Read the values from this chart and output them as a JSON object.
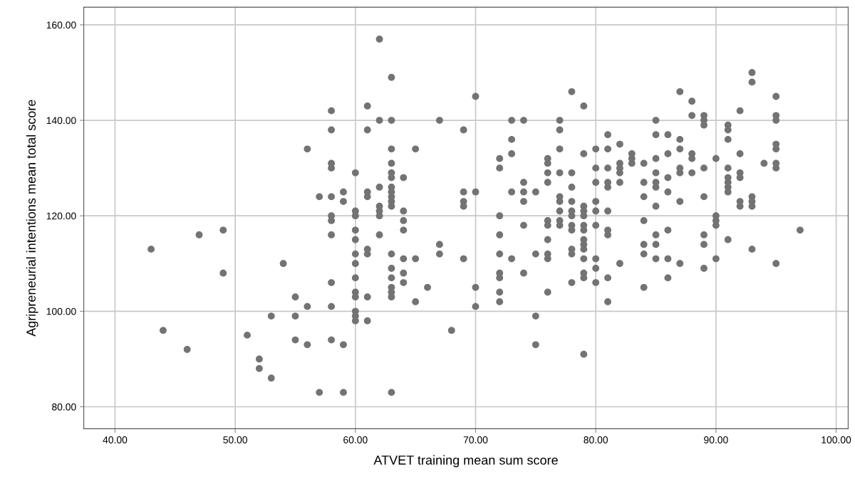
{
  "chart_data": {
    "type": "scatter",
    "xlabel": "ATVET training mean sum score",
    "ylabel": "Agripreneurial intentions mean total score",
    "xlim": [
      37.4,
      101
    ],
    "ylim": [
      75.4,
      163.7
    ],
    "xticks": [
      {
        "value": 40,
        "label": "40.00"
      },
      {
        "value": 50,
        "label": "50.00"
      },
      {
        "value": 60,
        "label": "60.00"
      },
      {
        "value": 70,
        "label": "70.00"
      },
      {
        "value": 80,
        "label": "80.00"
      },
      {
        "value": 90,
        "label": "90.00"
      },
      {
        "value": 100,
        "label": "100.00"
      }
    ],
    "yticks": [
      {
        "value": 80,
        "label": "80.00"
      },
      {
        "value": 100,
        "label": "100.00"
      },
      {
        "value": 120,
        "label": "120.00"
      },
      {
        "value": 140,
        "label": "140.00"
      },
      {
        "value": 160,
        "label": "160.00"
      }
    ],
    "grid": true,
    "marker": "circle",
    "series": [
      {
        "color": "#737373",
        "x": [
          43,
          44,
          46,
          47,
          49,
          49,
          51,
          52,
          52,
          53,
          53,
          54,
          55,
          55,
          55,
          56,
          56,
          56,
          57,
          57,
          58,
          58,
          58,
          58,
          58,
          58,
          58,
          58,
          58,
          58,
          58,
          59,
          59,
          59,
          59,
          60,
          60,
          60,
          60,
          60,
          60,
          60,
          60,
          60,
          60,
          60,
          60,
          60,
          61,
          61,
          61,
          61,
          61,
          61,
          61,
          61,
          62,
          62,
          62,
          62,
          62,
          62,
          62,
          63,
          63,
          63,
          63,
          63,
          63,
          63,
          63,
          63,
          63,
          63,
          63,
          63,
          63,
          63,
          63,
          63,
          63,
          64,
          64,
          64,
          64,
          64,
          64,
          64,
          65,
          65,
          65,
          66,
          67,
          67,
          67,
          68,
          69,
          69,
          69,
          69,
          69,
          70,
          70,
          70,
          70,
          72,
          72,
          72,
          72,
          72,
          72,
          72,
          72,
          72,
          73,
          73,
          73,
          73,
          73,
          74,
          74,
          74,
          74,
          74,
          74,
          75,
          75,
          75,
          75,
          76,
          76,
          76,
          76,
          76,
          76,
          76,
          76,
          76,
          76,
          77,
          77,
          77,
          77,
          77,
          77,
          77,
          77,
          77,
          78,
          78,
          78,
          78,
          78,
          78,
          78,
          78,
          78,
          78,
          78,
          79,
          79,
          79,
          79,
          79,
          79,
          79,
          79,
          79,
          79,
          79,
          79,
          79,
          79,
          80,
          80,
          80,
          80,
          80,
          80,
          80,
          80,
          80,
          81,
          81,
          81,
          81,
          81,
          81,
          81,
          81,
          81,
          81,
          82,
          82,
          82,
          82,
          82,
          82,
          83,
          83,
          83,
          84,
          84,
          84,
          84,
          84,
          84,
          84,
          85,
          85,
          85,
          85,
          85,
          85,
          85,
          85,
          85,
          85,
          86,
          86,
          86,
          86,
          86,
          86,
          86,
          87,
          87,
          87,
          87,
          87,
          87,
          87,
          88,
          88,
          88,
          88,
          88,
          89,
          89,
          89,
          89,
          89,
          89,
          89,
          89,
          90,
          90,
          90,
          90,
          90,
          91,
          91,
          91,
          91,
          91,
          91,
          91,
          91,
          91,
          92,
          92,
          92,
          92,
          92,
          92,
          93,
          93,
          93,
          93,
          93,
          93,
          94,
          95,
          95,
          95,
          95,
          95,
          95,
          95,
          95,
          97
        ],
        "values": [
          113,
          96,
          92,
          116,
          117,
          108,
          95,
          90,
          88,
          99,
          86,
          110,
          103,
          99,
          94,
          134,
          101,
          93,
          124,
          83,
          142,
          138,
          131,
          130,
          124,
          120,
          119,
          116,
          106,
          101,
          94,
          125,
          123,
          93,
          83,
          129,
          121,
          120,
          117,
          115,
          112,
          110,
          107,
          104,
          103,
          100,
          99,
          98,
          143,
          138,
          125,
          124,
          113,
          112,
          103,
          98,
          157,
          140,
          126,
          122,
          121,
          120,
          116,
          149,
          140,
          134,
          131,
          129,
          128,
          126,
          125,
          124,
          123,
          122,
          112,
          109,
          107,
          105,
          104,
          103,
          83,
          128,
          121,
          119,
          117,
          111,
          108,
          106,
          134,
          111,
          102,
          105,
          140,
          114,
          112,
          96,
          138,
          125,
          123,
          122,
          111,
          145,
          125,
          105,
          101,
          132,
          130,
          120,
          116,
          112,
          108,
          107,
          104,
          102,
          140,
          136,
          133,
          125,
          111,
          140,
          127,
          125,
          123,
          118,
          108,
          125,
          112,
          99,
          93,
          132,
          131,
          129,
          127,
          119,
          118,
          115,
          112,
          111,
          104,
          140,
          138,
          134,
          129,
          124,
          123,
          121,
          119,
          118,
          146,
          129,
          126,
          123,
          121,
          120,
          118,
          117,
          113,
          112,
          106,
          143,
          133,
          122,
          121,
          120,
          118,
          117,
          115,
          114,
          113,
          111,
          108,
          107,
          91,
          134,
          130,
          127,
          123,
          121,
          118,
          111,
          109,
          106,
          137,
          134,
          130,
          127,
          126,
          121,
          117,
          116,
          107,
          102,
          135,
          131,
          130,
          129,
          127,
          110,
          133,
          132,
          131,
          131,
          127,
          124,
          119,
          114,
          112,
          105,
          140,
          137,
          132,
          129,
          127,
          126,
          122,
          116,
          114,
          111,
          137,
          133,
          128,
          125,
          117,
          111,
          107,
          146,
          136,
          134,
          130,
          129,
          123,
          110,
          144,
          141,
          133,
          132,
          129,
          141,
          140,
          139,
          130,
          124,
          116,
          114,
          109,
          132,
          120,
          119,
          118,
          111,
          139,
          138,
          136,
          130,
          128,
          127,
          126,
          125,
          115,
          142,
          133,
          129,
          128,
          123,
          122,
          150,
          148,
          124,
          123,
          122,
          113,
          131,
          145,
          141,
          140,
          135,
          134,
          131,
          130,
          110,
          117
        ]
      }
    ]
  }
}
